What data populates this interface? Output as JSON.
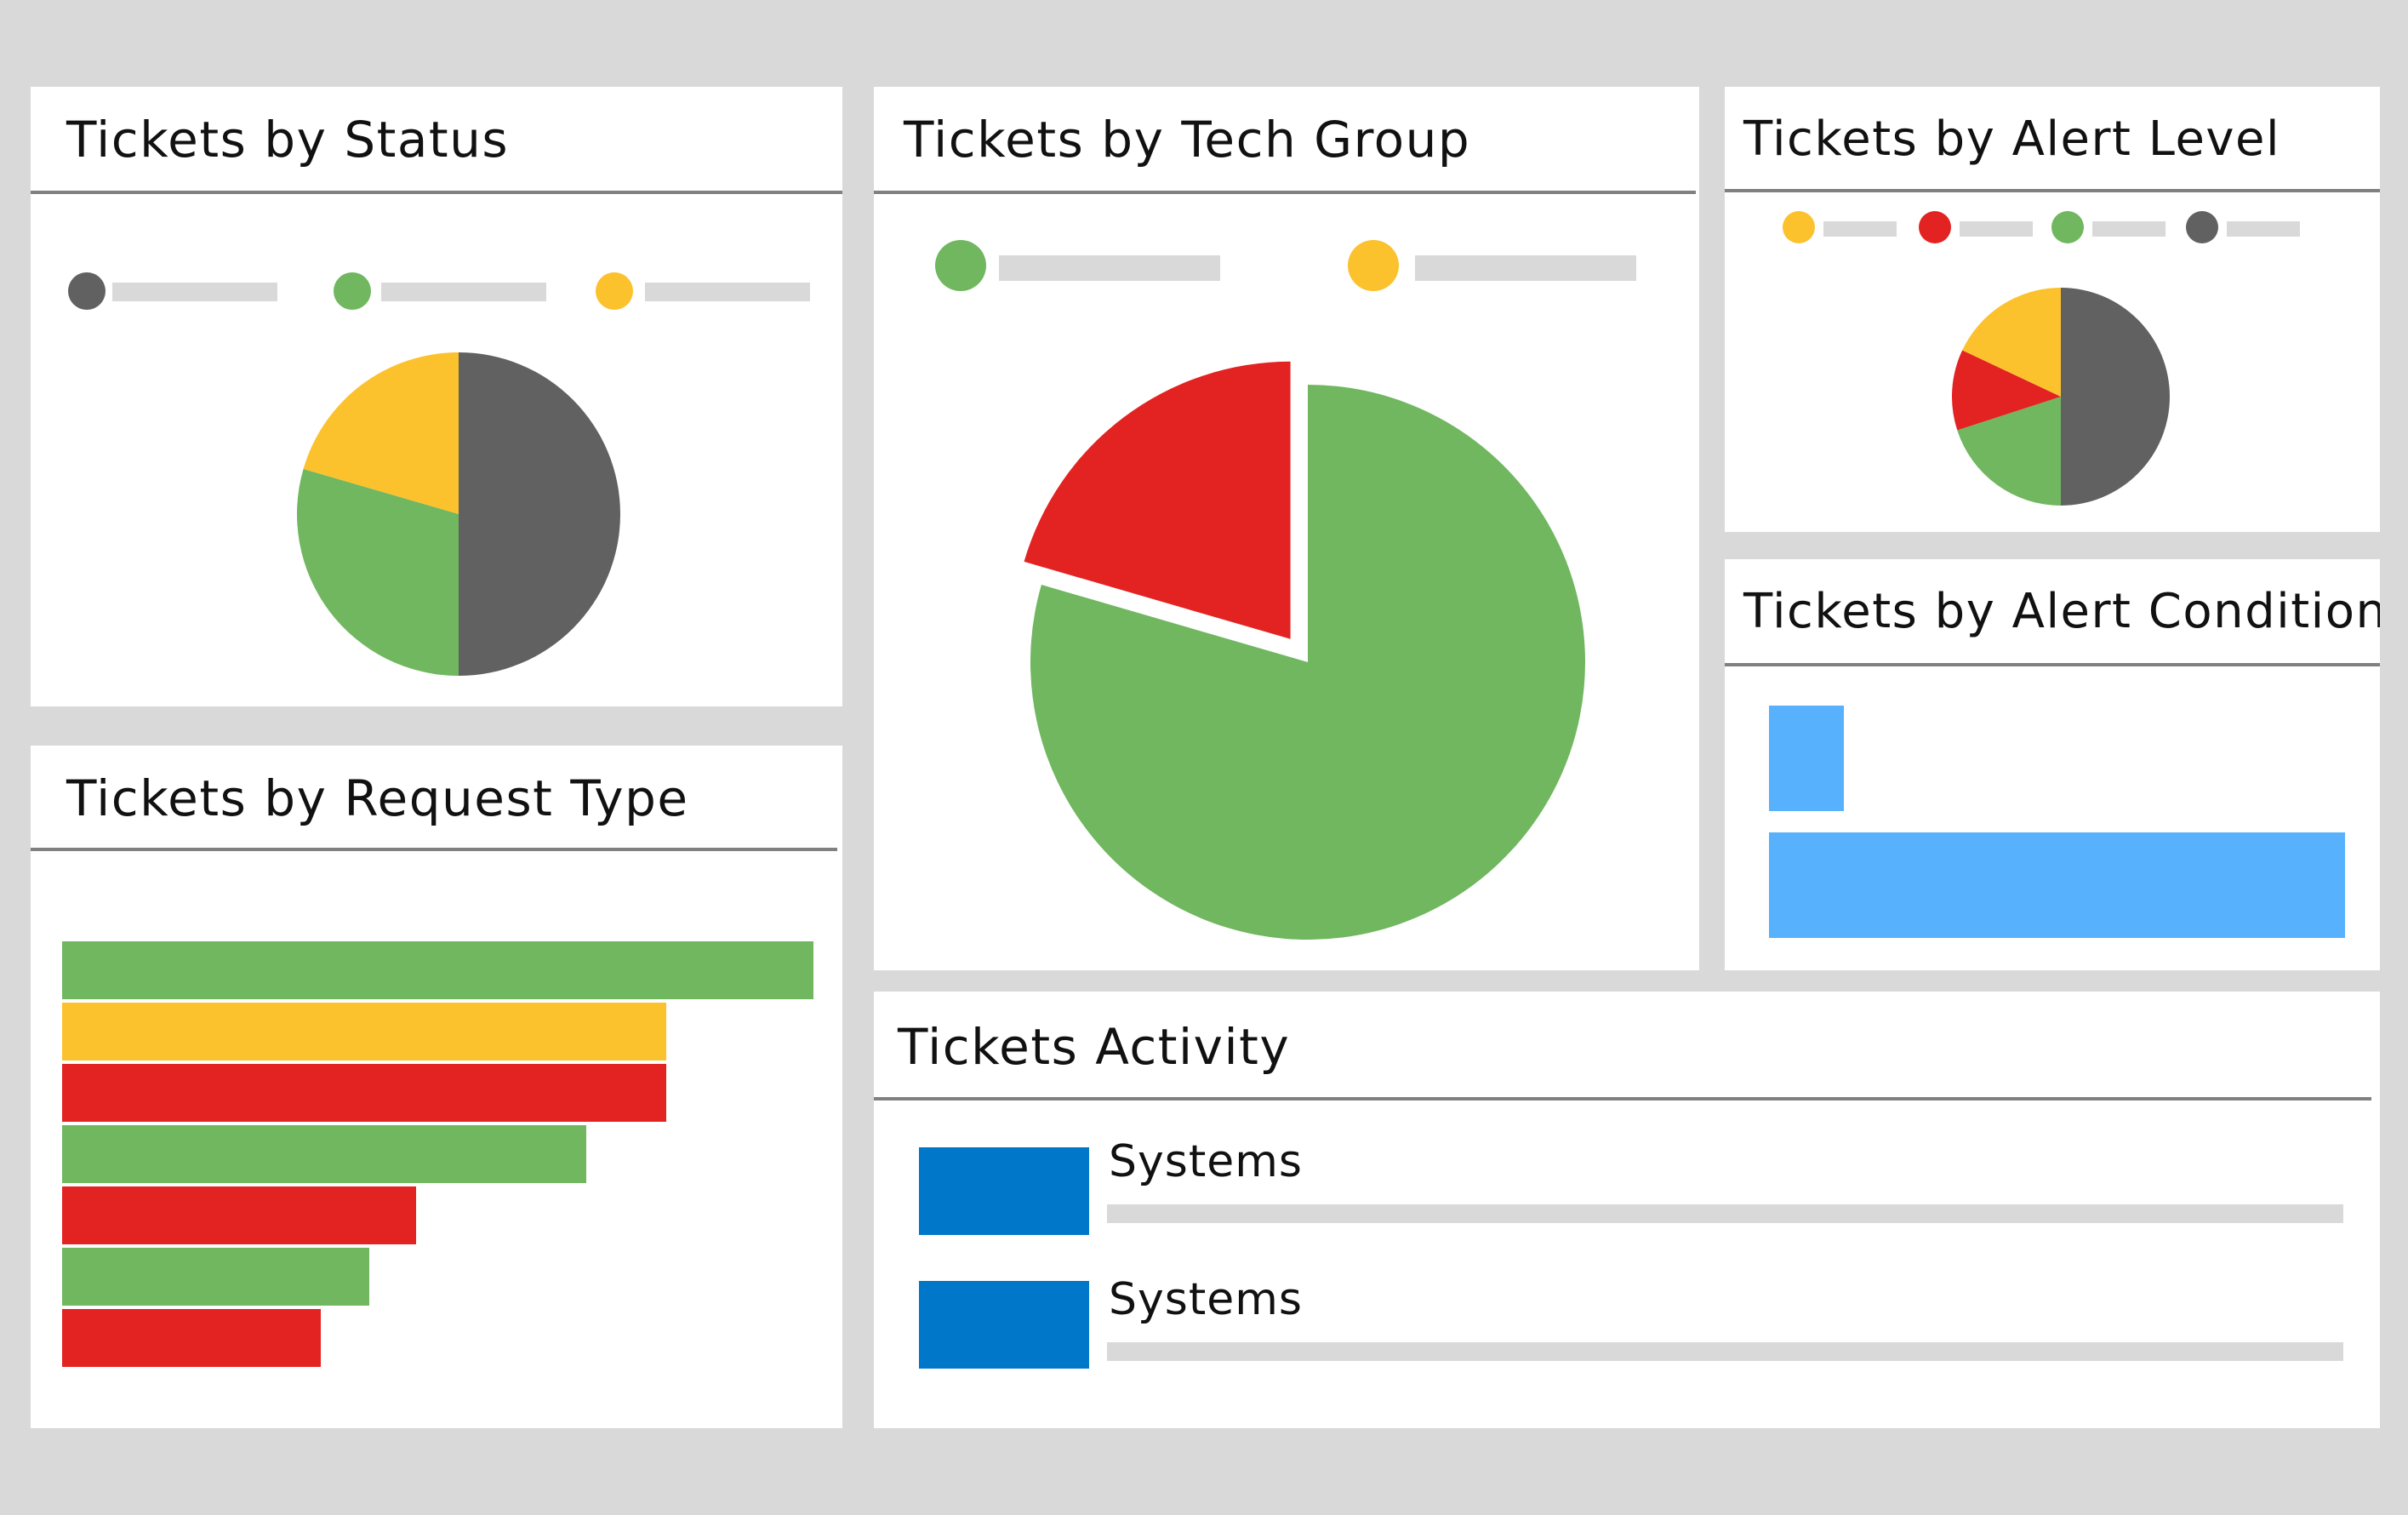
{
  "colors": {
    "gray": "#616161",
    "green": "#70b760",
    "yellow": "#fbc22d",
    "red": "#e32322",
    "light_blue": "#58b1fd",
    "blue": "#0077c8",
    "placeholder": "#d9d9d9"
  },
  "panels": {
    "status": {
      "title": "Tickets by Status",
      "legend": [
        {
          "color_name": "gray",
          "icon": "legend-swatch"
        },
        {
          "color_name": "green",
          "icon": "legend-swatch"
        },
        {
          "color_name": "yellow",
          "icon": "legend-swatch"
        }
      ]
    },
    "tech_group": {
      "title": "Tickets by Tech Group",
      "legend": [
        {
          "color_name": "green",
          "icon": "legend-swatch"
        },
        {
          "color_name": "yellow",
          "icon": "legend-swatch"
        }
      ]
    },
    "alert_level": {
      "title": "Tickets by Alert Level",
      "legend": [
        {
          "color_name": "yellow",
          "icon": "legend-swatch"
        },
        {
          "color_name": "red",
          "icon": "legend-swatch"
        },
        {
          "color_name": "green",
          "icon": "legend-swatch"
        },
        {
          "color_name": "gray",
          "icon": "legend-swatch"
        }
      ]
    },
    "alert_condition": {
      "title": "Tickets by Alert Condition"
    },
    "request_type": {
      "title": "Tickets by Request Type"
    },
    "activity": {
      "title": "Tickets Activity",
      "items": [
        {
          "label": "Systems"
        },
        {
          "label": "Systems"
        }
      ]
    }
  },
  "chart_data": [
    {
      "type": "pie",
      "panel": "status",
      "slices": [
        {
          "color": "#616161",
          "value": 50
        },
        {
          "color": "#70b760",
          "value": 29.5
        },
        {
          "color": "#fbc22d",
          "value": 20.5
        }
      ]
    },
    {
      "type": "pie",
      "panel": "tech_group",
      "slices": [
        {
          "color": "#70b760",
          "value": 79.5
        },
        {
          "color": "#e32322",
          "value": 20.5,
          "exploded": true
        }
      ]
    },
    {
      "type": "pie",
      "panel": "alert_level",
      "slices": [
        {
          "color": "#616161",
          "value": 50
        },
        {
          "color": "#70b760",
          "value": 20
        },
        {
          "color": "#e32322",
          "value": 12
        },
        {
          "color": "#fbc22d",
          "value": 18
        }
      ]
    },
    {
      "type": "bar",
      "orientation": "horizontal",
      "panel": "alert_condition",
      "values": [
        13,
        100
      ],
      "colors": [
        "#58b1fd",
        "#58b1fd"
      ]
    },
    {
      "type": "bar",
      "orientation": "horizontal",
      "panel": "request_type",
      "values": [
        100,
        80.4,
        80.4,
        69.8,
        47.1,
        40.9,
        34.4
      ],
      "colors": [
        "#70b760",
        "#fbc22d",
        "#e32322",
        "#70b760",
        "#e32322",
        "#70b760",
        "#e32322"
      ]
    }
  ]
}
